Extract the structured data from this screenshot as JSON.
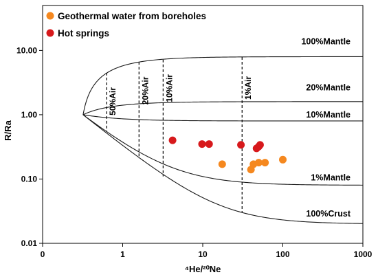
{
  "chart_data": {
    "type": "scatter",
    "xlabel": "⁴He/²⁰Ne",
    "ylabel": "R/Ra",
    "x_scale": "log",
    "y_scale": "log",
    "xlim": [
      0.1,
      1000
    ],
    "ylim": [
      0.01,
      50
    ],
    "x_ticks": [
      {
        "value": 0.1,
        "label": "0"
      },
      {
        "value": 1,
        "label": "1"
      },
      {
        "value": 10,
        "label": "10"
      },
      {
        "value": 100,
        "label": "100"
      },
      {
        "value": 1000,
        "label": "1000"
      }
    ],
    "y_ticks": [
      {
        "value": 0.01,
        "label": "0.01"
      },
      {
        "value": 0.1,
        "label": "0.10"
      },
      {
        "value": 1,
        "label": "1.00"
      },
      {
        "value": 10,
        "label": "10.00"
      }
    ],
    "grid": false,
    "legend_position": "top-left",
    "series": [
      {
        "name": "Geothermal water from boreholes",
        "color": "#f5881f",
        "points": [
          {
            "x": 17.5,
            "y": 0.17
          },
          {
            "x": 40,
            "y": 0.14
          },
          {
            "x": 43,
            "y": 0.17
          },
          {
            "x": 50,
            "y": 0.18
          },
          {
            "x": 60,
            "y": 0.18
          },
          {
            "x": 100,
            "y": 0.2
          }
        ]
      },
      {
        "name": "Hot springs",
        "color": "#d7191c",
        "points": [
          {
            "x": 4.2,
            "y": 0.4
          },
          {
            "x": 9.8,
            "y": 0.35
          },
          {
            "x": 12,
            "y": 0.35
          },
          {
            "x": 30,
            "y": 0.34
          },
          {
            "x": 47,
            "y": 0.3
          },
          {
            "x": 50,
            "y": 0.32
          },
          {
            "x": 52,
            "y": 0.34
          }
        ]
      }
    ],
    "mixing_origin": {
      "x": 0.32,
      "y": 1.0
    },
    "mixing_curves": [
      {
        "label": "100%Mantle",
        "end_value": 8.0,
        "label_x": 150,
        "label_y": 12.5
      },
      {
        "label": "20%Mantle",
        "end_value": 1.6,
        "label_x": 150,
        "label_y": 2.4
      },
      {
        "label": "10%Mantle",
        "end_value": 0.8,
        "label_x": 150,
        "label_y": 0.9
      },
      {
        "label": "1%Mantle",
        "end_value": 0.08,
        "label_x": 150,
        "label_y": 0.095
      },
      {
        "label": "100%Crust",
        "end_value": 0.02,
        "label_x": 150,
        "label_y": 0.026
      }
    ],
    "air_lines": [
      {
        "label": "50%Air",
        "x": 0.63,
        "y_top": 4.5,
        "y_bottom": 0.55
      },
      {
        "label": "20%Air",
        "x": 1.6,
        "y_top": 6.6,
        "y_bottom": 0.21
      },
      {
        "label": "10%Air",
        "x": 3.2,
        "y_top": 7.2,
        "y_bottom": 0.11
      },
      {
        "label": "1%Air",
        "x": 31,
        "y_top": 7.9,
        "y_bottom": 0.03
      }
    ]
  }
}
